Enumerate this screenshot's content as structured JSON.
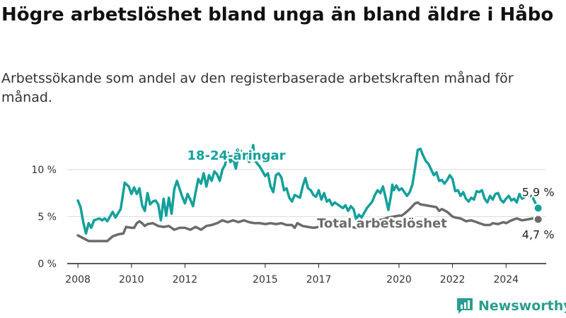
{
  "title": "Högre arbetslöshet bland unga än bland äldre i Håbo",
  "subtitle": "Arbetssökande som andel av den registerbaserade arbetskraften månad för månad.",
  "logo_text": "Newsworthy",
  "colors": {
    "youth": "#13a09a",
    "total": "#6b6b6b",
    "axis": "#222222",
    "grid": "#dddddd"
  },
  "chart_data": {
    "type": "line",
    "title": "Högre arbetslöshet bland unga än bland äldre i Håbo",
    "subtitle": "Arbetssökande som andel av den registerbaserade arbetskraften månad för månad.",
    "xlabel": "",
    "ylabel": "",
    "x_range": [
      2007.6,
      2025.5
    ],
    "ylim": [
      0,
      13
    ],
    "x_ticks": [
      2008,
      2010,
      2012,
      2015,
      2017,
      2020,
      2022,
      2024
    ],
    "y_ticks": [
      {
        "value": 0,
        "label": "0 %"
      },
      {
        "value": 5,
        "label": "5 %"
      },
      {
        "value": 10,
        "label": "10 %"
      }
    ],
    "grid": true,
    "series": [
      {
        "name": "18-24-åringar",
        "end_label": "5,9 %",
        "points": [
          [
            2008.0,
            6.7
          ],
          [
            2008.1,
            6.0
          ],
          [
            2008.2,
            4.4
          ],
          [
            2008.3,
            3.2
          ],
          [
            2008.4,
            4.3
          ],
          [
            2008.5,
            3.8
          ],
          [
            2008.6,
            4.6
          ],
          [
            2008.8,
            4.8
          ],
          [
            2008.9,
            4.6
          ],
          [
            2009.0,
            4.8
          ],
          [
            2009.1,
            4.5
          ],
          [
            2009.3,
            5.5
          ],
          [
            2009.4,
            4.9
          ],
          [
            2009.6,
            5.8
          ],
          [
            2009.75,
            8.6
          ],
          [
            2009.9,
            8.2
          ],
          [
            2010.0,
            7.4
          ],
          [
            2010.1,
            8.1
          ],
          [
            2010.2,
            7.4
          ],
          [
            2010.3,
            8.0
          ],
          [
            2010.4,
            6.2
          ],
          [
            2010.5,
            5.6
          ],
          [
            2010.6,
            7.5
          ],
          [
            2010.7,
            6.3
          ],
          [
            2010.8,
            6.6
          ],
          [
            2010.9,
            6.7
          ],
          [
            2011.0,
            6.3
          ],
          [
            2011.1,
            4.6
          ],
          [
            2011.2,
            6.9
          ],
          [
            2011.3,
            5.1
          ],
          [
            2011.4,
            7.0
          ],
          [
            2011.5,
            5.3
          ],
          [
            2011.6,
            7.9
          ],
          [
            2011.7,
            8.8
          ],
          [
            2011.9,
            7.1
          ],
          [
            2012.0,
            6.4
          ],
          [
            2012.1,
            7.4
          ],
          [
            2012.2,
            6.8
          ],
          [
            2012.3,
            6.1
          ],
          [
            2012.4,
            7.6
          ],
          [
            2012.5,
            9.0
          ],
          [
            2012.6,
            8.5
          ],
          [
            2012.7,
            9.6
          ],
          [
            2012.8,
            8.2
          ],
          [
            2012.9,
            9.4
          ],
          [
            2013.0,
            8.8
          ],
          [
            2013.1,
            9.8
          ],
          [
            2013.2,
            9.5
          ],
          [
            2013.3,
            8.8
          ],
          [
            2013.4,
            10.0
          ],
          [
            2013.5,
            10.5
          ],
          [
            2013.6,
            11.8
          ],
          [
            2013.7,
            10.8
          ],
          [
            2013.8,
            11.2
          ],
          [
            2013.9,
            10.1
          ],
          [
            2014.0,
            11.5
          ],
          [
            2014.1,
            12.0
          ],
          [
            2014.2,
            11.0
          ],
          [
            2014.3,
            11.6
          ],
          [
            2014.4,
            10.8
          ],
          [
            2014.5,
            11.9
          ],
          [
            2014.55,
            12.6
          ],
          [
            2014.6,
            11.0
          ],
          [
            2014.8,
            10.3
          ],
          [
            2015.0,
            9.3
          ],
          [
            2015.1,
            9.6
          ],
          [
            2015.2,
            8.2
          ],
          [
            2015.3,
            7.6
          ],
          [
            2015.4,
            9.4
          ],
          [
            2015.5,
            9.6
          ],
          [
            2015.6,
            9.2
          ],
          [
            2015.7,
            7.8
          ],
          [
            2015.8,
            8.0
          ],
          [
            2015.9,
            7.0
          ],
          [
            2016.0,
            6.6
          ],
          [
            2016.1,
            7.3
          ],
          [
            2016.3,
            7.0
          ],
          [
            2016.4,
            8.2
          ],
          [
            2016.5,
            9.1
          ],
          [
            2016.6,
            8.0
          ],
          [
            2016.7,
            7.8
          ],
          [
            2016.8,
            7.3
          ],
          [
            2016.9,
            7.1
          ],
          [
            2017.0,
            7.8
          ],
          [
            2017.1,
            6.8
          ],
          [
            2017.2,
            7.5
          ],
          [
            2017.3,
            6.6
          ],
          [
            2017.4,
            6.8
          ],
          [
            2017.5,
            6.2
          ],
          [
            2017.6,
            6.5
          ],
          [
            2017.8,
            6.1
          ],
          [
            2017.9,
            5.9
          ],
          [
            2018.0,
            6.2
          ],
          [
            2018.1,
            5.6
          ],
          [
            2018.2,
            6.1
          ],
          [
            2018.3,
            5.8
          ],
          [
            2018.4,
            4.7
          ],
          [
            2018.5,
            5.2
          ],
          [
            2018.6,
            4.9
          ],
          [
            2018.8,
            5.9
          ],
          [
            2019.0,
            6.6
          ],
          [
            2019.1,
            7.3
          ],
          [
            2019.2,
            7.8
          ],
          [
            2019.3,
            7.5
          ],
          [
            2019.4,
            8.2
          ],
          [
            2019.5,
            7.0
          ],
          [
            2019.6,
            5.7
          ],
          [
            2019.7,
            7.2
          ],
          [
            2019.75,
            8.4
          ],
          [
            2019.8,
            7.8
          ],
          [
            2019.9,
            8.3
          ],
          [
            2020.0,
            7.8
          ],
          [
            2020.1,
            8.0
          ],
          [
            2020.2,
            7.6
          ],
          [
            2020.3,
            7.2
          ],
          [
            2020.4,
            7.6
          ],
          [
            2020.5,
            8.4
          ],
          [
            2020.6,
            10.2
          ],
          [
            2020.7,
            12.1
          ],
          [
            2020.8,
            12.2
          ],
          [
            2020.9,
            11.5
          ],
          [
            2021.0,
            10.9
          ],
          [
            2021.1,
            10.6
          ],
          [
            2021.2,
            10.0
          ],
          [
            2021.3,
            9.4
          ],
          [
            2021.4,
            9.7
          ],
          [
            2021.5,
            8.8
          ],
          [
            2021.6,
            8.9
          ],
          [
            2021.7,
            8.5
          ],
          [
            2021.8,
            8.9
          ],
          [
            2021.9,
            9.4
          ],
          [
            2022.0,
            9.0
          ],
          [
            2022.1,
            7.7
          ],
          [
            2022.2,
            7.8
          ],
          [
            2022.3,
            7.2
          ],
          [
            2022.4,
            7.6
          ],
          [
            2022.5,
            6.9
          ],
          [
            2022.6,
            6.6
          ],
          [
            2022.7,
            7.0
          ],
          [
            2022.8,
            6.8
          ],
          [
            2022.9,
            7.7
          ],
          [
            2023.0,
            7.6
          ],
          [
            2023.1,
            7.8
          ],
          [
            2023.2,
            6.9
          ],
          [
            2023.3,
            6.5
          ],
          [
            2023.4,
            7.2
          ],
          [
            2023.5,
            6.8
          ],
          [
            2023.6,
            7.4
          ],
          [
            2023.7,
            7.5
          ],
          [
            2023.8,
            6.8
          ],
          [
            2023.9,
            6.5
          ],
          [
            2024.0,
            6.9
          ],
          [
            2024.1,
            7.2
          ],
          [
            2024.2,
            6.7
          ],
          [
            2024.3,
            6.9
          ],
          [
            2024.4,
            6.5
          ],
          [
            2024.5,
            7.4
          ],
          [
            2024.6,
            6.9
          ],
          [
            2024.8,
            7.3
          ],
          [
            2025.0,
            7.0
          ],
          [
            2025.1,
            6.4
          ],
          [
            2025.2,
            5.9
          ]
        ]
      },
      {
        "name": "Total arbetslöshet",
        "end_label": "4,7 %",
        "points": [
          [
            2008.0,
            3.0
          ],
          [
            2008.2,
            2.7
          ],
          [
            2008.4,
            2.4
          ],
          [
            2008.6,
            2.4
          ],
          [
            2008.8,
            2.4
          ],
          [
            2009.0,
            2.4
          ],
          [
            2009.1,
            2.4
          ],
          [
            2009.3,
            2.9
          ],
          [
            2009.5,
            3.1
          ],
          [
            2009.7,
            3.2
          ],
          [
            2009.8,
            3.9
          ],
          [
            2010.0,
            3.8
          ],
          [
            2010.1,
            3.8
          ],
          [
            2010.2,
            4.3
          ],
          [
            2010.3,
            4.5
          ],
          [
            2010.4,
            4.3
          ],
          [
            2010.5,
            4.0
          ],
          [
            2010.6,
            4.2
          ],
          [
            2010.8,
            4.3
          ],
          [
            2011.0,
            4.0
          ],
          [
            2011.2,
            3.9
          ],
          [
            2011.4,
            4.0
          ],
          [
            2011.5,
            3.8
          ],
          [
            2011.6,
            3.6
          ],
          [
            2011.8,
            3.8
          ],
          [
            2012.0,
            3.8
          ],
          [
            2012.2,
            3.6
          ],
          [
            2012.4,
            3.9
          ],
          [
            2012.6,
            3.6
          ],
          [
            2012.8,
            4.0
          ],
          [
            2013.0,
            4.1
          ],
          [
            2013.2,
            4.3
          ],
          [
            2013.4,
            4.6
          ],
          [
            2013.6,
            4.4
          ],
          [
            2013.8,
            4.6
          ],
          [
            2014.0,
            4.4
          ],
          [
            2014.2,
            4.6
          ],
          [
            2014.4,
            4.4
          ],
          [
            2014.6,
            4.3
          ],
          [
            2014.8,
            4.3
          ],
          [
            2015.0,
            4.2
          ],
          [
            2015.2,
            4.3
          ],
          [
            2015.4,
            4.2
          ],
          [
            2015.6,
            4.3
          ],
          [
            2015.8,
            4.1
          ],
          [
            2016.0,
            4.1
          ],
          [
            2016.1,
            3.8
          ],
          [
            2016.2,
            4.3
          ],
          [
            2016.4,
            4.0
          ],
          [
            2016.6,
            3.9
          ],
          [
            2016.8,
            3.8
          ],
          [
            2017.0,
            3.9
          ],
          [
            2017.2,
            4.2
          ],
          [
            2017.4,
            4.0
          ],
          [
            2017.6,
            4.1
          ],
          [
            2017.8,
            4.0
          ],
          [
            2018.0,
            4.1
          ],
          [
            2018.2,
            3.9
          ],
          [
            2018.4,
            3.8
          ],
          [
            2018.6,
            4.0
          ],
          [
            2018.8,
            4.3
          ],
          [
            2019.0,
            4.5
          ],
          [
            2019.2,
            4.6
          ],
          [
            2019.4,
            4.7
          ],
          [
            2019.6,
            4.9
          ],
          [
            2019.8,
            5.0
          ],
          [
            2020.0,
            5.1
          ],
          [
            2020.1,
            5.1
          ],
          [
            2020.2,
            5.3
          ],
          [
            2020.4,
            5.8
          ],
          [
            2020.6,
            6.4
          ],
          [
            2020.7,
            6.5
          ],
          [
            2020.8,
            6.3
          ],
          [
            2021.0,
            6.2
          ],
          [
            2021.2,
            6.1
          ],
          [
            2021.4,
            6.0
          ],
          [
            2021.5,
            5.6
          ],
          [
            2021.6,
            5.8
          ],
          [
            2021.8,
            5.5
          ],
          [
            2022.0,
            5.0
          ],
          [
            2022.1,
            4.9
          ],
          [
            2022.3,
            4.8
          ],
          [
            2022.5,
            4.5
          ],
          [
            2022.7,
            4.6
          ],
          [
            2022.9,
            4.4
          ],
          [
            2023.0,
            4.3
          ],
          [
            2023.2,
            4.1
          ],
          [
            2023.4,
            4.1
          ],
          [
            2023.5,
            4.3
          ],
          [
            2023.7,
            4.2
          ],
          [
            2023.9,
            4.4
          ],
          [
            2024.0,
            4.3
          ],
          [
            2024.2,
            4.6
          ],
          [
            2024.4,
            4.8
          ],
          [
            2024.6,
            4.6
          ],
          [
            2024.8,
            4.7
          ],
          [
            2025.0,
            4.8
          ],
          [
            2025.2,
            4.7
          ]
        ]
      }
    ]
  }
}
